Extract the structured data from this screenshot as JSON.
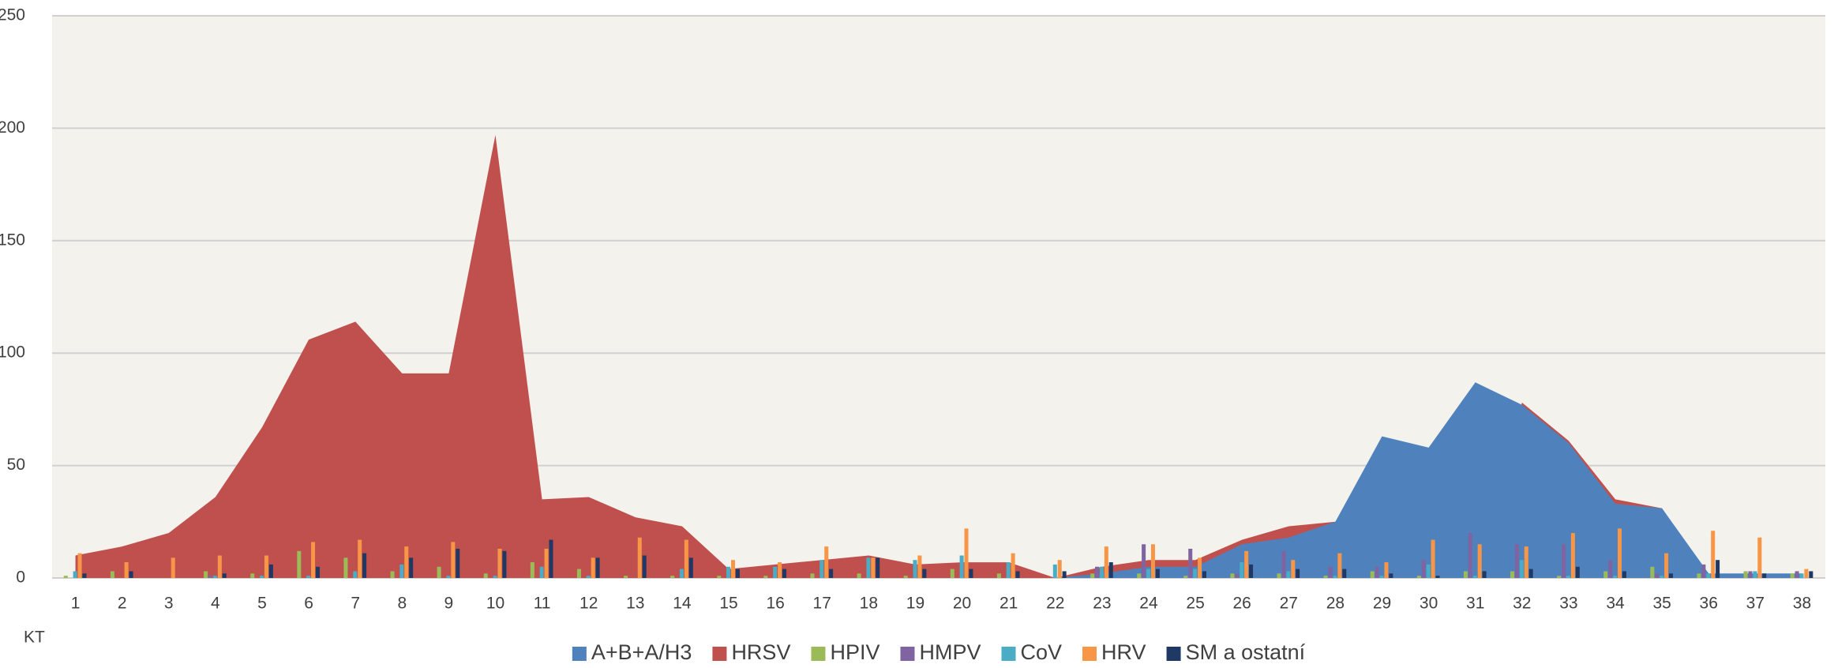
{
  "chart_data": {
    "type": "combo",
    "x_label": "KT",
    "categories": [
      "1",
      "2",
      "3",
      "4",
      "5",
      "6",
      "7",
      "8",
      "9",
      "10",
      "11",
      "12",
      "13",
      "14",
      "15",
      "16",
      "17",
      "18",
      "19",
      "20",
      "21",
      "22",
      "23",
      "24",
      "25",
      "26",
      "27",
      "28",
      "29",
      "30",
      "31",
      "32",
      "33",
      "34",
      "35",
      "36",
      "37",
      "38"
    ],
    "ylim": [
      0,
      250
    ],
    "yticks": [
      0,
      50,
      100,
      150,
      200,
      250
    ],
    "grid": true,
    "legend": "bottom",
    "series": [
      {
        "name": "A+B+A/H3",
        "color": "#4f81bd",
        "kind": "area",
        "values": [
          0,
          0,
          0,
          0,
          0,
          0,
          0,
          0,
          0,
          0,
          0,
          0,
          0,
          0,
          0,
          0,
          0,
          0,
          0,
          0,
          0,
          0,
          2,
          5,
          5,
          15,
          18,
          25,
          63,
          58,
          87,
          77,
          60,
          33,
          31,
          2,
          2,
          2
        ]
      },
      {
        "name": "HRSV",
        "color": "#c0504d",
        "kind": "area",
        "values": [
          10,
          14,
          20,
          36,
          67,
          106,
          114,
          91,
          91,
          197,
          35,
          36,
          27,
          23,
          4,
          6,
          8,
          10,
          6,
          7,
          7,
          0,
          5,
          8,
          8,
          17,
          23,
          25,
          10,
          8,
          6,
          78,
          61,
          35,
          31,
          1,
          1,
          1
        ]
      },
      {
        "name": "HPIV",
        "color": "#9bbb59",
        "kind": "bar",
        "values": [
          1,
          3,
          0,
          3,
          2,
          12,
          9,
          3,
          5,
          2,
          7,
          4,
          1,
          1,
          1,
          1,
          2,
          2,
          1,
          4,
          2,
          0,
          2,
          2,
          1,
          2,
          2,
          1,
          3,
          1,
          3,
          3,
          1,
          3,
          5,
          2,
          3,
          2
        ]
      },
      {
        "name": "HMPV",
        "color": "#8064a2",
        "kind": "bar",
        "values": [
          0,
          0,
          0,
          1,
          0,
          0,
          0,
          0,
          0,
          0,
          0,
          0,
          0,
          0,
          0,
          0,
          0,
          0,
          0,
          0,
          0,
          0,
          5,
          15,
          13,
          2,
          12,
          5,
          5,
          8,
          20,
          15,
          15,
          8,
          2,
          6,
          3,
          3
        ]
      },
      {
        "name": "CoV",
        "color": "#4bacc6",
        "kind": "bar",
        "values": [
          3,
          0,
          0,
          1,
          1,
          1,
          3,
          6,
          1,
          1,
          5,
          1,
          0,
          4,
          5,
          5,
          8,
          9,
          8,
          10,
          7,
          6,
          5,
          4,
          4,
          7,
          3,
          1,
          1,
          6,
          1,
          8,
          1,
          1,
          1,
          2,
          3,
          2
        ]
      },
      {
        "name": "HRV",
        "color": "#f79646",
        "kind": "bar",
        "values": [
          11,
          7,
          9,
          10,
          10,
          16,
          17,
          14,
          16,
          13,
          13,
          9,
          18,
          17,
          8,
          7,
          14,
          9,
          10,
          22,
          11,
          8,
          14,
          15,
          9,
          12,
          8,
          11,
          7,
          17,
          15,
          14,
          20,
          22,
          11,
          21,
          18,
          4
        ]
      },
      {
        "name": "SM a ostatní",
        "color": "#1f3864",
        "kind": "bar",
        "values": [
          2,
          3,
          0,
          2,
          6,
          5,
          11,
          9,
          13,
          12,
          17,
          9,
          10,
          9,
          4,
          4,
          4,
          9,
          4,
          4,
          3,
          3,
          7,
          4,
          3,
          6,
          4,
          4,
          2,
          1,
          3,
          4,
          5,
          3,
          2,
          8,
          2,
          3
        ]
      }
    ]
  }
}
